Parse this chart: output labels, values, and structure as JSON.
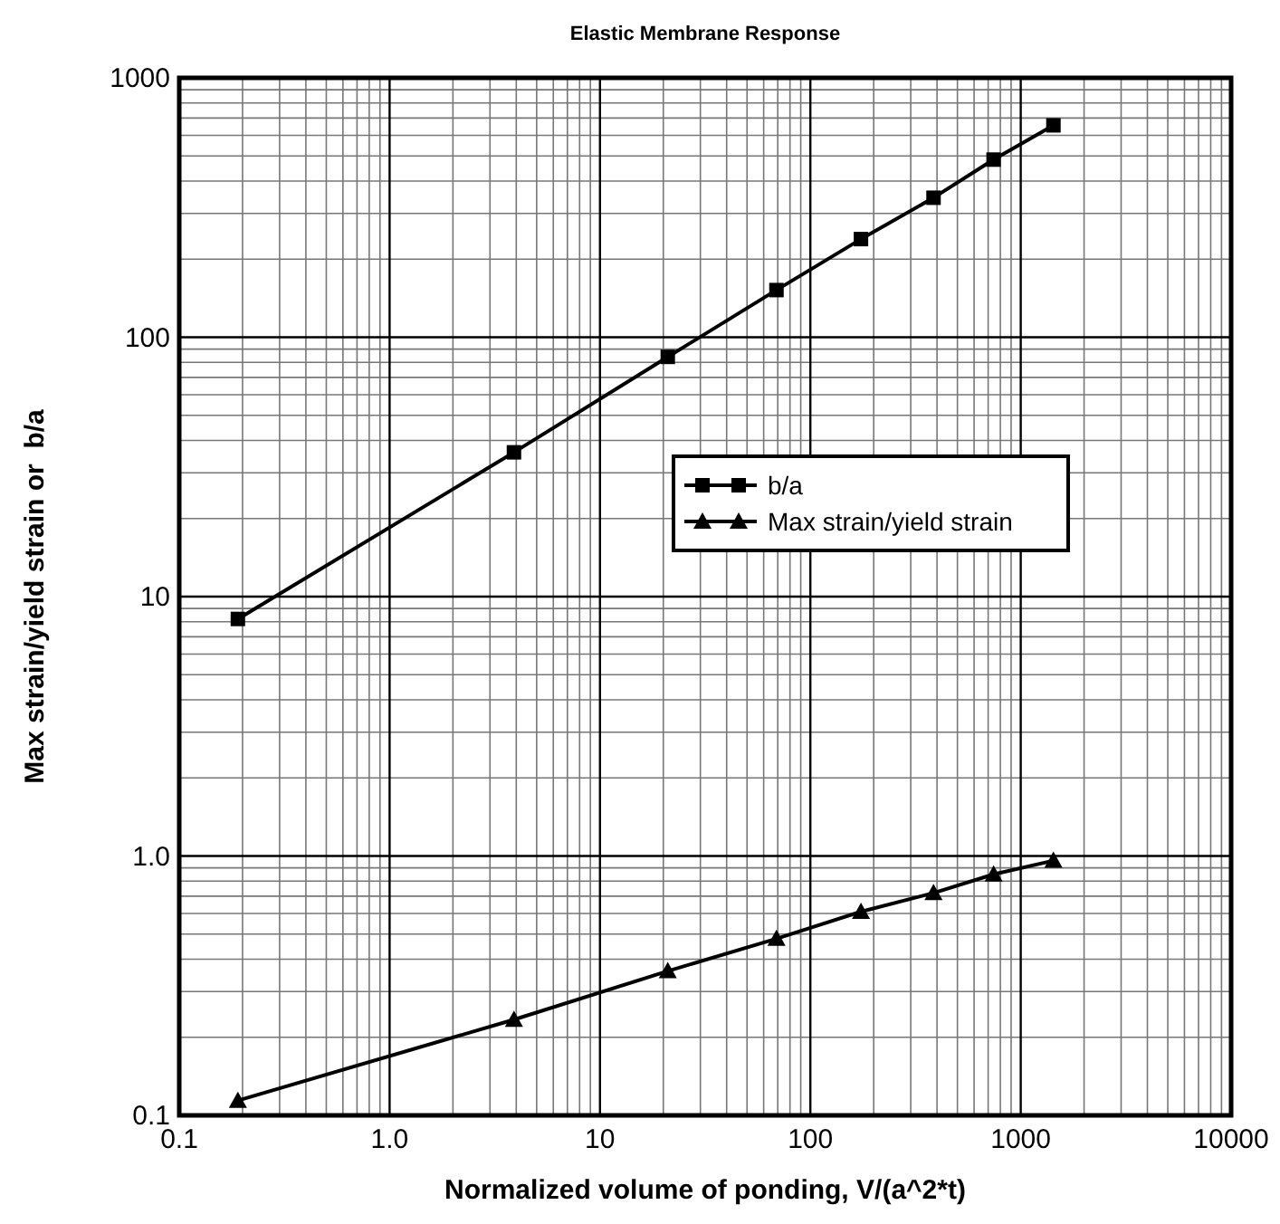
{
  "chart_data": {
    "type": "line",
    "title": "Elastic Membrane Response",
    "xlabel": "Normalized volume of ponding, V/(a^2*t)",
    "ylabel": "Max strain/yield strain or  b/a",
    "x": [
      0.19,
      3.9,
      21,
      69,
      174,
      385,
      743,
      1430
    ],
    "series": [
      {
        "name": "b/a",
        "color": "#000000",
        "marker": "square",
        "values": [
          8.2,
          36,
          84,
          152,
          239,
          345,
          484,
          656
        ]
      },
      {
        "name": "Max strain/yield strain",
        "color": "#000000",
        "marker": "triangle",
        "values": [
          0.114,
          0.234,
          0.36,
          0.48,
          0.61,
          0.72,
          0.85,
          0.96
        ]
      }
    ],
    "log": "xy",
    "xlim": [
      0.1,
      10000
    ],
    "ylim": [
      0.1,
      1000
    ],
    "xticks": [
      0.1,
      {
        "value": 1,
        "label": "1.0"
      },
      10,
      100,
      1000,
      10000
    ],
    "yticks": [
      0.1,
      {
        "value": 1,
        "label": "1.0"
      },
      10,
      100,
      1000
    ],
    "grid": true,
    "legend": "right",
    "line_style": "solid"
  }
}
